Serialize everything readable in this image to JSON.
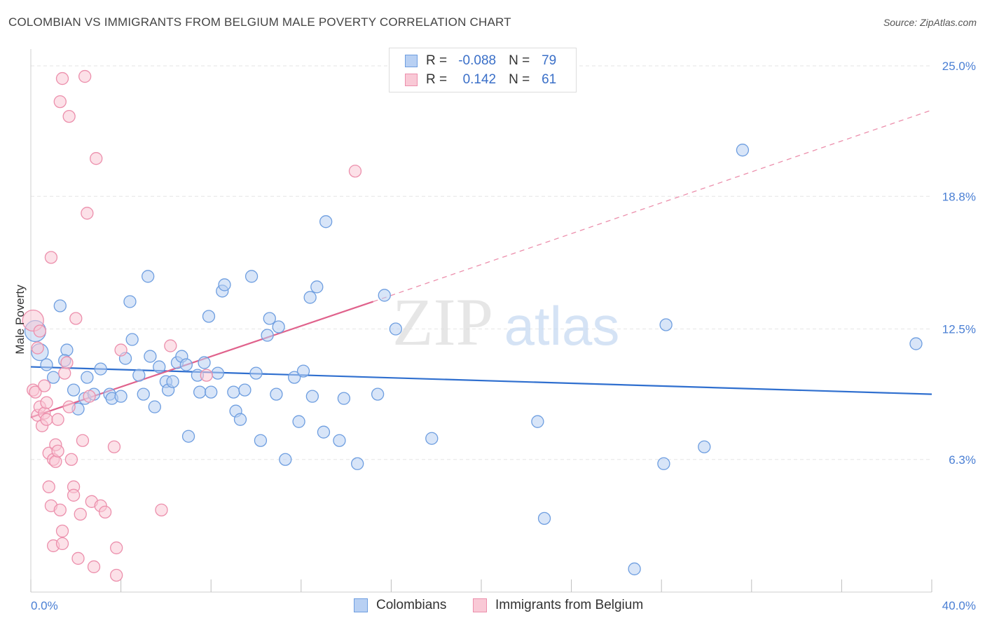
{
  "title": "COLOMBIAN VS IMMIGRANTS FROM BELGIUM MALE POVERTY CORRELATION CHART",
  "source": "Source: ZipAtlas.com",
  "watermark": {
    "zip": "ZIP",
    "atlas": "atlas"
  },
  "colors": {
    "blue": "#6e9ee0",
    "blue_fill": "#b8d0f3",
    "blue_line": "#2f6fcf",
    "pink": "#ec8fac",
    "pink_fill": "#f9c9d6",
    "pink_line": "#e0628c",
    "axis_text": "#4a7fd4",
    "grid": "#e6e6e6"
  },
  "legend": {
    "r_label": "R =",
    "n_label": "N =",
    "rows": [
      {
        "series": "Colombians",
        "r": "-0.088",
        "n": "79"
      },
      {
        "series": "Immigrants from Belgium",
        "r": "0.142",
        "n": "61"
      }
    ]
  },
  "chart_data": {
    "type": "scatter",
    "title": "COLOMBIAN VS IMMIGRANTS FROM BELGIUM MALE POVERTY CORRELATION CHART",
    "xlabel": "",
    "ylabel": "Male Poverty",
    "xlim": [
      0,
      40
    ],
    "ylim": [
      0,
      25.8
    ],
    "x_tick_labels": [
      {
        "value": 0,
        "label": "0.0%"
      },
      {
        "value": 40,
        "label": "40.0%"
      }
    ],
    "y_ticks": [
      {
        "value": 6.3,
        "label": "6.3%"
      },
      {
        "value": 12.5,
        "label": "12.5%"
      },
      {
        "value": 18.8,
        "label": "18.8%"
      },
      {
        "value": 25.0,
        "label": "25.0%"
      }
    ],
    "x_minor_ticks": [
      0,
      4,
      8,
      12,
      16,
      20,
      24,
      28,
      32,
      36,
      40
    ],
    "series": [
      {
        "name": "Colombians",
        "color": "#6e9ee0",
        "trend": {
          "x0": 0,
          "y0": 10.7,
          "x1": 40,
          "y1": 9.4,
          "dashed_to": null
        },
        "points": [
          [
            0.2,
            12.4,
            3
          ],
          [
            0.4,
            11.4,
            2
          ],
          [
            0.7,
            10.8,
            1
          ],
          [
            1.0,
            10.2,
            1
          ],
          [
            1.3,
            13.6,
            1
          ],
          [
            1.6,
            11.5,
            1
          ],
          [
            1.5,
            11.0,
            1
          ],
          [
            1.9,
            9.6,
            1
          ],
          [
            2.1,
            8.7,
            1
          ],
          [
            2.5,
            10.2,
            1
          ],
          [
            2.4,
            9.2,
            1
          ],
          [
            2.8,
            9.4,
            1
          ],
          [
            3.1,
            10.6,
            1
          ],
          [
            3.5,
            9.4,
            1
          ],
          [
            3.6,
            9.2,
            1
          ],
          [
            4.0,
            9.3,
            1
          ],
          [
            4.2,
            11.1,
            1
          ],
          [
            4.4,
            13.8,
            1
          ],
          [
            4.5,
            12.0,
            1
          ],
          [
            4.8,
            10.3,
            1
          ],
          [
            5.0,
            9.4,
            1
          ],
          [
            5.2,
            15.0,
            1
          ],
          [
            5.3,
            11.2,
            1
          ],
          [
            5.5,
            8.8,
            1
          ],
          [
            5.7,
            10.7,
            1
          ],
          [
            6.0,
            10.0,
            1
          ],
          [
            6.1,
            9.6,
            1
          ],
          [
            6.3,
            10.0,
            1
          ],
          [
            6.5,
            10.9,
            1
          ],
          [
            6.7,
            11.2,
            1
          ],
          [
            6.9,
            10.8,
            1
          ],
          [
            7.0,
            7.4,
            1
          ],
          [
            7.4,
            10.3,
            1
          ],
          [
            7.5,
            9.5,
            1
          ],
          [
            7.7,
            10.9,
            1
          ],
          [
            7.9,
            13.1,
            1
          ],
          [
            8.0,
            9.5,
            1
          ],
          [
            8.3,
            10.4,
            1
          ],
          [
            8.5,
            14.3,
            1
          ],
          [
            8.6,
            14.6,
            1
          ],
          [
            9.0,
            9.5,
            1
          ],
          [
            9.1,
            8.6,
            1
          ],
          [
            9.3,
            8.2,
            1
          ],
          [
            9.5,
            9.6,
            1
          ],
          [
            9.8,
            15.0,
            1
          ],
          [
            10.0,
            10.4,
            1
          ],
          [
            10.2,
            7.2,
            1
          ],
          [
            10.5,
            12.2,
            1
          ],
          [
            10.6,
            13.0,
            1
          ],
          [
            10.9,
            9.4,
            1
          ],
          [
            11.0,
            12.6,
            1
          ],
          [
            11.3,
            6.3,
            1
          ],
          [
            11.7,
            10.2,
            1
          ],
          [
            11.9,
            8.1,
            1
          ],
          [
            12.1,
            10.5,
            1
          ],
          [
            12.4,
            14.0,
            1
          ],
          [
            12.5,
            9.3,
            1
          ],
          [
            12.7,
            14.5,
            1
          ],
          [
            13.0,
            7.6,
            1
          ],
          [
            13.1,
            17.6,
            1
          ],
          [
            13.7,
            7.2,
            1
          ],
          [
            13.9,
            9.2,
            1
          ],
          [
            14.5,
            6.1,
            1
          ],
          [
            15.4,
            9.4,
            1
          ],
          [
            15.7,
            14.1,
            1
          ],
          [
            16.2,
            12.5,
            1
          ],
          [
            17.8,
            7.3,
            1
          ],
          [
            22.5,
            8.1,
            1
          ],
          [
            22.8,
            3.5,
            1
          ],
          [
            26.8,
            1.1,
            1
          ],
          [
            28.1,
            6.1,
            1
          ],
          [
            28.2,
            12.7,
            1
          ],
          [
            29.9,
            6.9,
            1
          ],
          [
            31.6,
            21.0,
            1
          ],
          [
            39.3,
            11.8,
            1
          ]
        ]
      },
      {
        "name": "Immigrants from Belgium",
        "color": "#ec8fac",
        "trend": {
          "x0": 0,
          "y0": 8.3,
          "x1": 15.2,
          "y1": 13.8,
          "dashed_to": {
            "x": 40,
            "y": 22.9
          }
        },
        "points": [
          [
            0.1,
            12.9,
            3
          ],
          [
            0.1,
            9.6,
            1
          ],
          [
            0.2,
            9.5,
            1
          ],
          [
            0.3,
            8.4,
            1
          ],
          [
            0.3,
            11.6,
            1
          ],
          [
            0.4,
            12.4,
            1
          ],
          [
            0.4,
            8.8,
            1
          ],
          [
            0.5,
            7.9,
            1
          ],
          [
            0.6,
            9.8,
            1
          ],
          [
            0.6,
            8.5,
            1
          ],
          [
            0.7,
            9.0,
            1
          ],
          [
            0.7,
            8.2,
            1
          ],
          [
            0.8,
            6.6,
            1
          ],
          [
            0.8,
            5.0,
            1
          ],
          [
            0.9,
            4.1,
            1
          ],
          [
            0.9,
            15.9,
            1
          ],
          [
            1.0,
            6.3,
            1
          ],
          [
            1.0,
            2.2,
            1
          ],
          [
            1.1,
            6.2,
            1
          ],
          [
            1.1,
            7.0,
            1
          ],
          [
            1.2,
            6.7,
            1
          ],
          [
            1.2,
            8.2,
            1
          ],
          [
            1.3,
            3.9,
            1
          ],
          [
            1.3,
            23.3,
            1
          ],
          [
            1.4,
            2.3,
            1
          ],
          [
            1.4,
            2.9,
            1
          ],
          [
            1.4,
            24.4,
            1
          ],
          [
            1.5,
            10.4,
            1
          ],
          [
            1.6,
            10.9,
            1
          ],
          [
            1.7,
            8.8,
            1
          ],
          [
            1.7,
            22.6,
            1
          ],
          [
            1.8,
            6.3,
            1
          ],
          [
            1.9,
            5.0,
            1
          ],
          [
            1.9,
            4.6,
            1
          ],
          [
            2.0,
            13.0,
            1
          ],
          [
            2.1,
            1.6,
            1
          ],
          [
            2.2,
            3.7,
            1
          ],
          [
            2.3,
            7.2,
            1
          ],
          [
            2.4,
            24.5,
            1
          ],
          [
            2.5,
            18.0,
            1
          ],
          [
            2.6,
            9.3,
            1
          ],
          [
            2.7,
            4.3,
            1
          ],
          [
            2.8,
            1.2,
            1
          ],
          [
            2.9,
            20.6,
            1
          ],
          [
            3.1,
            4.1,
            1
          ],
          [
            3.3,
            3.8,
            1
          ],
          [
            3.7,
            6.9,
            1
          ],
          [
            3.8,
            2.1,
            1
          ],
          [
            3.8,
            0.8,
            1
          ],
          [
            4.0,
            11.5,
            1
          ],
          [
            5.8,
            3.9,
            1
          ],
          [
            6.2,
            11.7,
            1
          ],
          [
            7.8,
            10.3,
            1
          ],
          [
            14.4,
            20.0,
            1
          ]
        ]
      }
    ]
  },
  "bottom_legend": [
    {
      "label": "Colombians"
    },
    {
      "label": "Immigrants from Belgium"
    }
  ]
}
